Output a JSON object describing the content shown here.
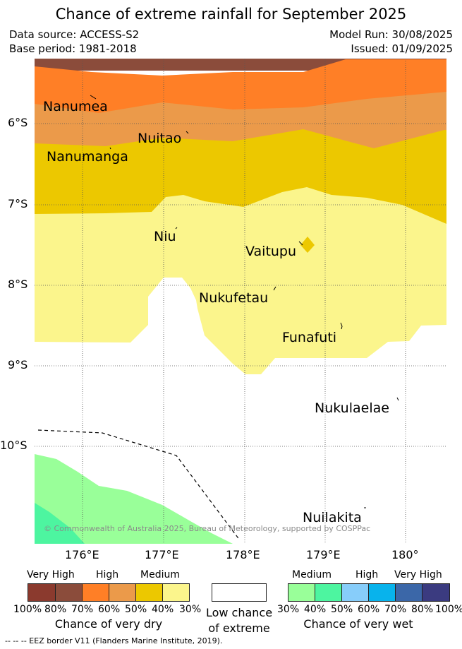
{
  "title": "Chance of extreme rainfall for September 2025",
  "meta": {
    "source": "Data source: ACCESS-S2",
    "base": "Base period: 1981-2018",
    "run": "Model Run: 30/08/2025",
    "issued": "Issued: 01/09/2025"
  },
  "axes": {
    "lat_ticks": [
      "6°S",
      "7°S",
      "8°S",
      "9°S",
      "10°S"
    ],
    "lon_ticks": [
      "176°E",
      "177°E",
      "178°E",
      "179°E",
      "180°"
    ]
  },
  "places": [
    "Nanumea",
    "Nuitao",
    "Nanumanga",
    "Niu",
    "Vaitupu",
    "Nukufetau",
    "Funafuti",
    "Nukulaelae",
    "Nuilakita"
  ],
  "copyright": "© Commonwealth of Australia 2025, Bureau of Meteorology, supported by COSPPac",
  "legend": {
    "dry": {
      "levels": [
        "Very High",
        "High",
        "Medium"
      ],
      "ticks": [
        "100%",
        "80%",
        "70%",
        "60%",
        "50%",
        "40%",
        "30%"
      ],
      "colors": [
        "#8b3a2e",
        "#8b4c3b",
        "#ff7f26",
        "#eb9a4a",
        "#ecc800",
        "#fbf58c"
      ],
      "caption": "Chance of very dry"
    },
    "low": {
      "caption_1": "Low chance",
      "caption_2": "of extreme",
      "color": "#ffffff"
    },
    "wet": {
      "levels": [
        "Medium",
        "High",
        "Very High"
      ],
      "ticks": [
        "30%",
        "40%",
        "50%",
        "60%",
        "70%",
        "80%",
        "100%"
      ],
      "colors": [
        "#99ff99",
        "#4df5a0",
        "#87cdfa",
        "#08b3ec",
        "#3b67a8",
        "#3b3b80"
      ],
      "caption": "Chance of very wet"
    }
  },
  "footer": "-- -- -- EEZ border V11 (Flanders Marine Institute, 2019)."
}
